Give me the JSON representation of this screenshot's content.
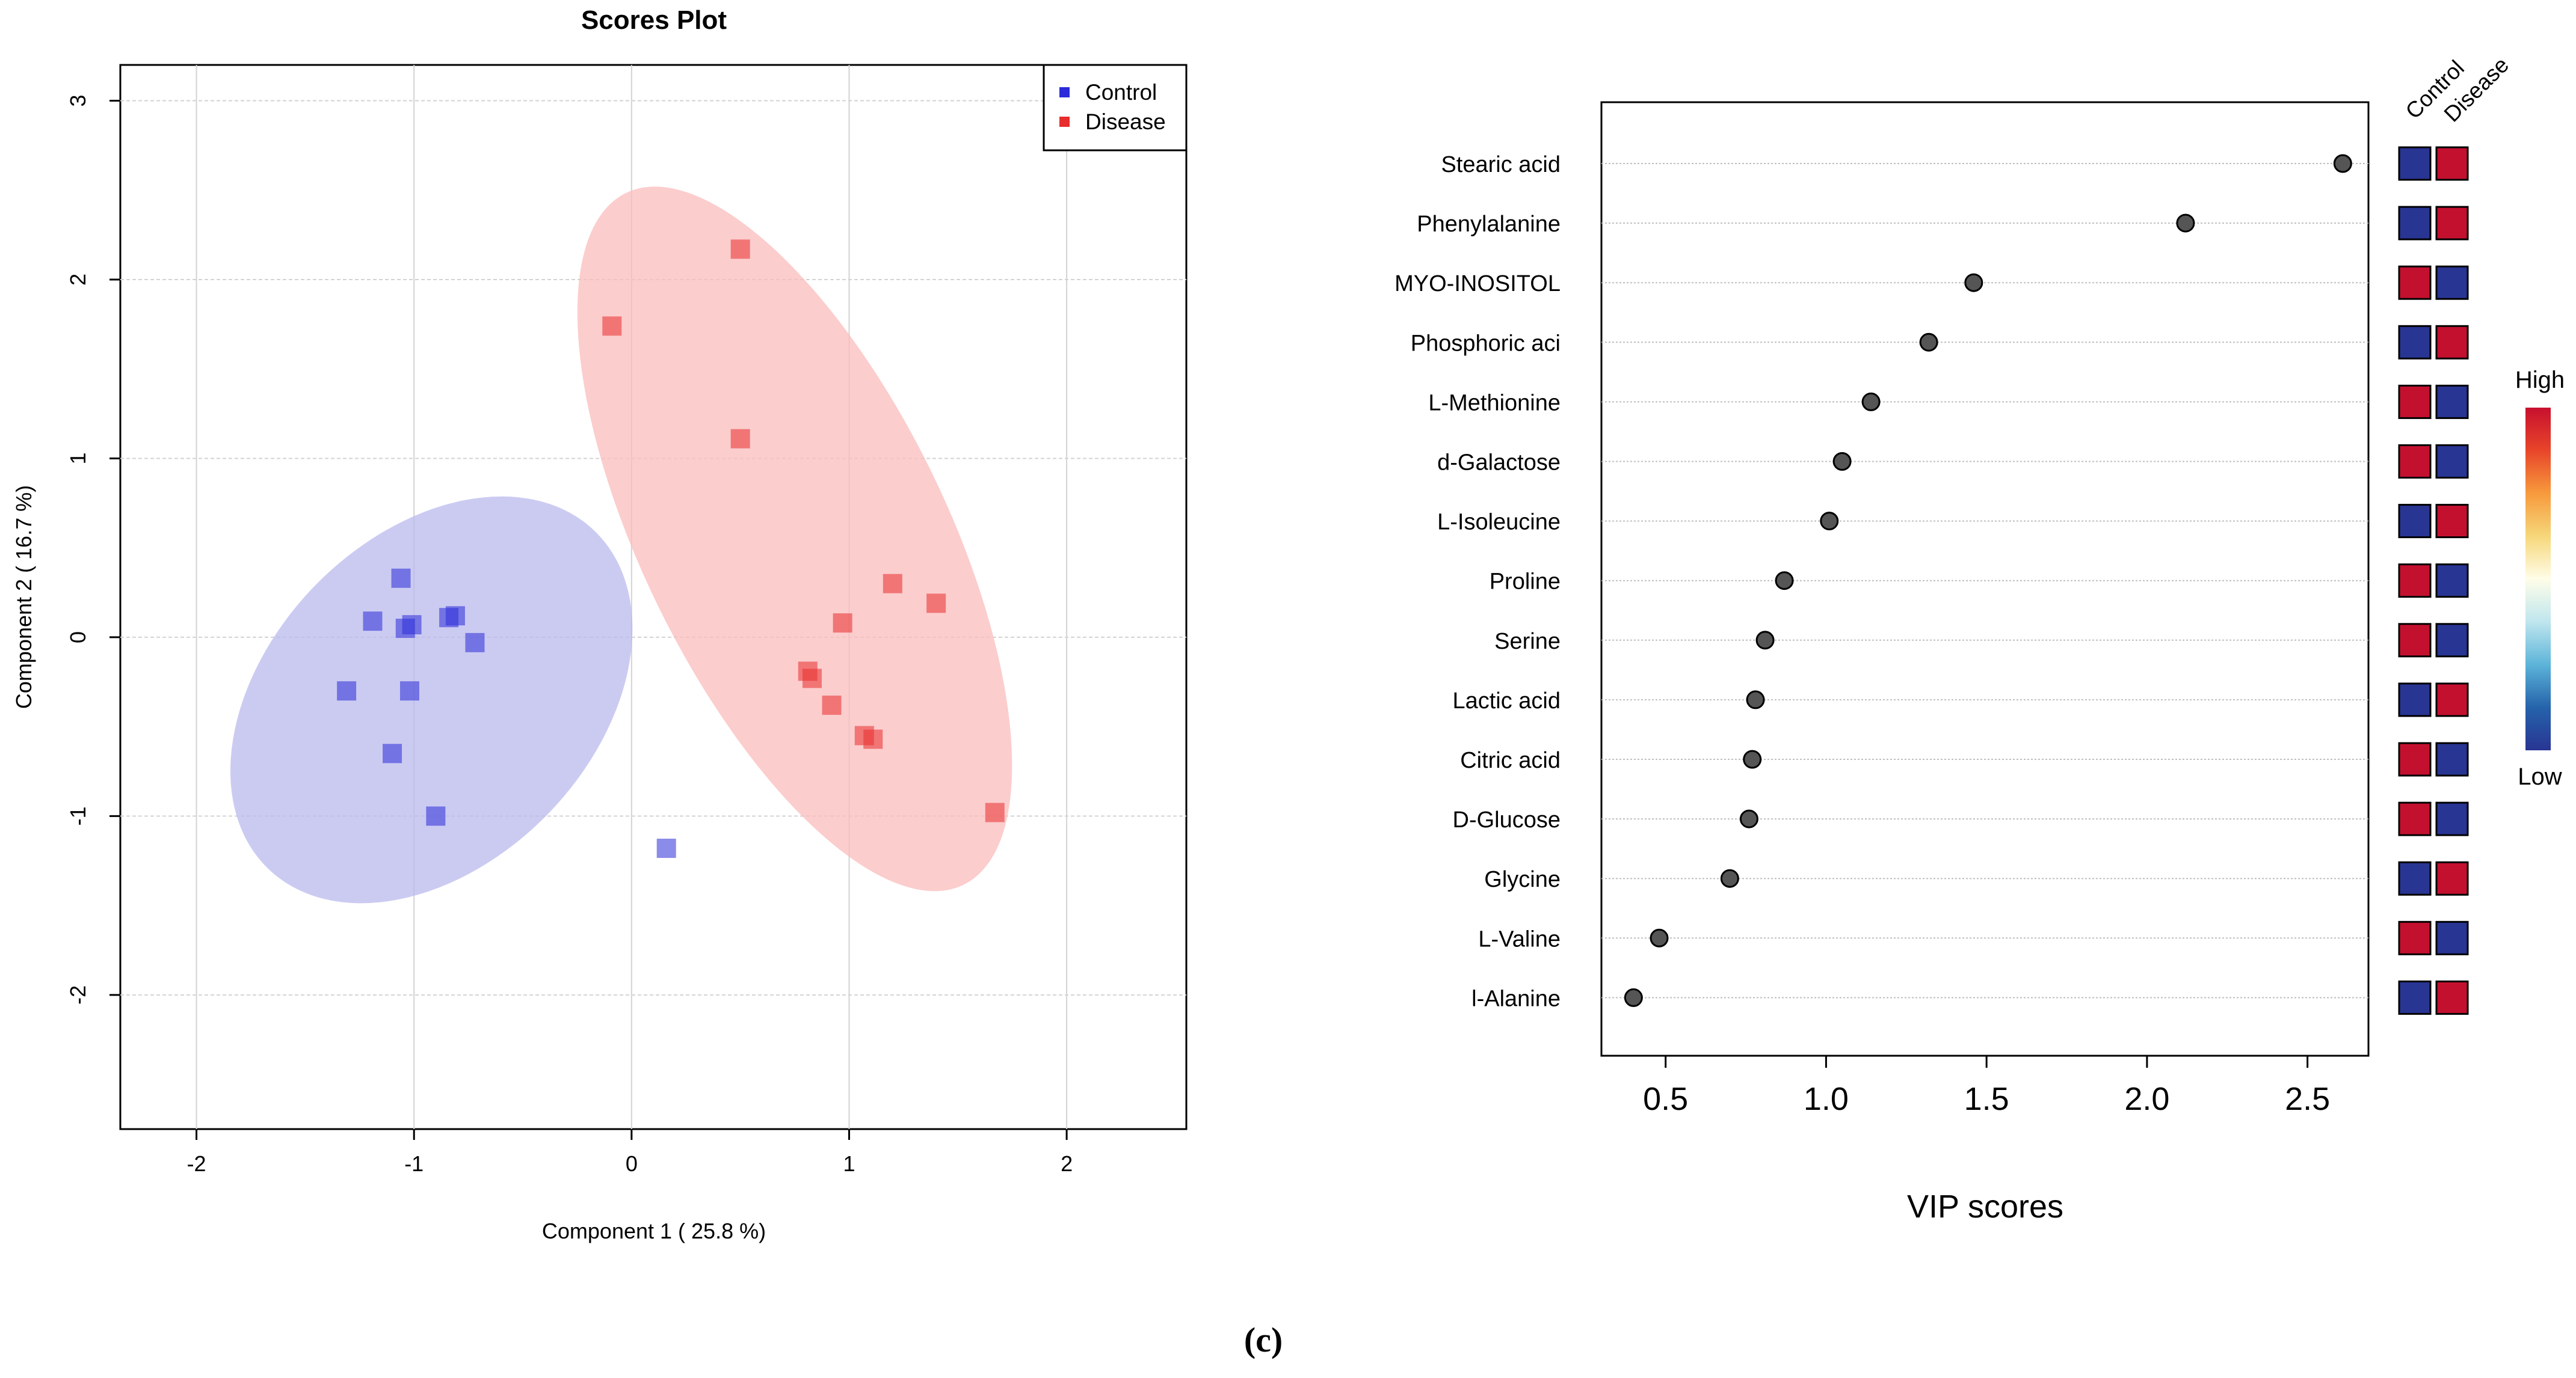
{
  "figure": {
    "panel_label": "(c)"
  },
  "chart_data": [
    {
      "type": "scatter",
      "title": "Scores Plot",
      "xlabel": "Component 1 ( 25.8 %)",
      "ylabel": "Component 2 ( 16.7 %)",
      "xlim": [
        -2.35,
        2.55
      ],
      "ylim": [
        -2.75,
        3.2
      ],
      "xticks": [
        -2,
        -1,
        0,
        1,
        2
      ],
      "yticks": [
        -2,
        -1,
        0,
        1,
        2,
        3
      ],
      "grid": true,
      "legend": {
        "position": "top-right",
        "entries": [
          "Control",
          "Disease"
        ]
      },
      "series": [
        {
          "name": "Control",
          "color": "#2b2bd9",
          "ellipse": {
            "cx": -0.92,
            "cy": -0.35,
            "rx": 1.08,
            "ry": 0.75,
            "angle_deg": -46,
            "fill": "#b9b9ee"
          },
          "points": [
            {
              "x": -1.06,
              "y": 0.33
            },
            {
              "x": -1.19,
              "y": 0.09
            },
            {
              "x": -1.04,
              "y": 0.05
            },
            {
              "x": -1.01,
              "y": 0.07
            },
            {
              "x": -0.84,
              "y": 0.11
            },
            {
              "x": -0.81,
              "y": 0.12
            },
            {
              "x": -0.72,
              "y": -0.03
            },
            {
              "x": -1.31,
              "y": -0.3
            },
            {
              "x": -1.02,
              "y": -0.3
            },
            {
              "x": -1.1,
              "y": -0.65
            },
            {
              "x": -0.9,
              "y": -1.0
            },
            {
              "x": 0.16,
              "y": -1.18
            }
          ]
        },
        {
          "name": "Disease",
          "color": "#e82d2d",
          "ellipse": {
            "cx": 0.75,
            "cy": 0.55,
            "rx": 1.77,
            "ry": 0.7,
            "angle_deg": 64,
            "fill": "#fbbcbc"
          },
          "points": [
            {
              "x": 0.5,
              "y": 2.17
            },
            {
              "x": -0.09,
              "y": 1.74
            },
            {
              "x": 0.5,
              "y": 1.11
            },
            {
              "x": 1.2,
              "y": 0.3
            },
            {
              "x": 1.4,
              "y": 0.19
            },
            {
              "x": 0.97,
              "y": 0.08
            },
            {
              "x": 0.81,
              "y": -0.19
            },
            {
              "x": 0.83,
              "y": -0.23
            },
            {
              "x": 0.92,
              "y": -0.38
            },
            {
              "x": 1.07,
              "y": -0.55
            },
            {
              "x": 1.11,
              "y": -0.57
            },
            {
              "x": 1.67,
              "y": -0.98
            }
          ]
        }
      ]
    },
    {
      "type": "dot",
      "title": "",
      "xlabel": "VIP scores",
      "ylabel": "",
      "xlim": [
        0.3,
        2.69
      ],
      "xticks": [
        0.5,
        1.0,
        1.5,
        2.0,
        2.5
      ],
      "xtick_labels": [
        "0.5",
        "1.0",
        "1.5",
        "2.0",
        "2.5"
      ],
      "categories": [
        "Stearic acid",
        "Phenylalanine",
        "MYO-INOSITOL",
        "Phosphoric aci",
        "L-Methionine",
        "d-Galactose",
        "L-Isoleucine",
        "Proline",
        "Serine",
        "Lactic acid",
        "Citric acid",
        "D-Glucose",
        "Glycine",
        "L-Valine",
        "l-Alanine"
      ],
      "values": [
        2.61,
        2.12,
        1.46,
        1.32,
        1.14,
        1.05,
        1.01,
        0.87,
        0.81,
        0.78,
        0.77,
        0.76,
        0.7,
        0.48,
        0.4
      ],
      "heatmap": {
        "columns": [
          "Control",
          "Disease"
        ],
        "rows": [
          [
            "low",
            "high"
          ],
          [
            "low",
            "high"
          ],
          [
            "high",
            "low"
          ],
          [
            "low",
            "high"
          ],
          [
            "high",
            "low"
          ],
          [
            "high",
            "low"
          ],
          [
            "low",
            "high"
          ],
          [
            "high",
            "low"
          ],
          [
            "high",
            "low"
          ],
          [
            "low",
            "high"
          ],
          [
            "high",
            "low"
          ],
          [
            "high",
            "low"
          ],
          [
            "low",
            "high"
          ],
          [
            "high",
            "low"
          ],
          [
            "low",
            "high"
          ]
        ],
        "colors": {
          "high": "#c4102f",
          "low": "#283593"
        }
      },
      "colorbar": {
        "high_label": "High",
        "low_label": "Low",
        "stops": [
          "#c8102e",
          "#e8452a",
          "#f79a3c",
          "#f6d77a",
          "#fffde8",
          "#bfe6ee",
          "#5cb4d9",
          "#2563ab",
          "#283593"
        ]
      }
    }
  ]
}
